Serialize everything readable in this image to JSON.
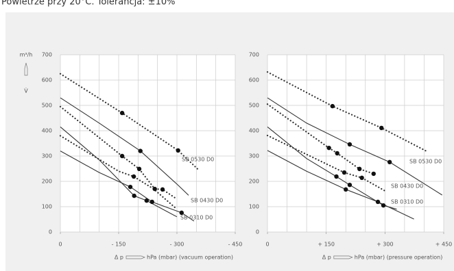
{
  "caption": "Powietrze przy 20°C. Tolerancja: ±10%",
  "chart_data": [
    {
      "type": "line",
      "ylabel": "m³/h",
      "ylabel_symbol": "V̇",
      "xlabel_symbol": "Δ p",
      "xlabel": "hPa (mbar) (vacuum operation)",
      "xlim": [
        0,
        -450
      ],
      "xticks": [
        0,
        {
          "value": -150,
          "label": "- 150"
        },
        {
          "value": -300,
          "label": "- 300"
        },
        {
          "value": -450,
          "label": "- 450"
        }
      ],
      "xgrid": [
        0,
        -50,
        -100,
        -150,
        -200,
        -250,
        -300,
        -350,
        -400,
        -450
      ],
      "ylim": [
        0,
        700
      ],
      "yticks": [
        0,
        100,
        200,
        300,
        400,
        500,
        600,
        700
      ],
      "grid": true,
      "series": [
        {
          "name": "SB 0530 D0",
          "style": "solid",
          "x": [
            0,
            -100,
            -206,
            -303,
            -330
          ],
          "values": [
            530,
            430,
            320,
            185,
            145
          ]
        },
        {
          "name": "SB 0430 D0",
          "style": "solid",
          "x": [
            0,
            -100,
            -190,
            -222,
            -300
          ],
          "values": [
            415,
            285,
            143,
            124,
            60
          ]
        },
        {
          "name": "SB 0310 D0",
          "style": "solid",
          "x": [
            0,
            -100,
            -180,
            -236,
            -312,
            -344
          ],
          "values": [
            320,
            235,
            178,
            119,
            76,
            43
          ]
        },
        {
          "style": "dotted",
          "x": [
            0,
            -159,
            -303,
            -356
          ],
          "values": [
            625,
            470,
            322,
            245
          ]
        },
        {
          "style": "dotted",
          "x": [
            0,
            -159,
            -203,
            -243,
            -263,
            -300
          ],
          "values": [
            495,
            300,
            249,
            170,
            168,
            130
          ]
        },
        {
          "style": "dotted",
          "x": [
            0,
            -150,
            -189,
            -240,
            -300
          ],
          "values": [
            380,
            240,
            219,
            170,
            90
          ]
        },
        {
          "style": "dot",
          "x": [
            -159,
            -206,
            -303,
            -159,
            -203,
            -189,
            -243,
            -263,
            -180,
            -190,
            -222,
            -236,
            -312
          ],
          "values": [
            470,
            320,
            322,
            300,
            249,
            219,
            170,
            168,
            178,
            143,
            124,
            119,
            76
          ]
        }
      ]
    },
    {
      "type": "line",
      "xlabel_symbol": "Δ p",
      "xlabel": "hPa (mbar) (pressure operation)",
      "xlim": [
        0,
        450
      ],
      "xticks": [
        0,
        {
          "value": 150,
          "label": "+ 150"
        },
        {
          "value": 300,
          "label": "+ 300"
        },
        {
          "value": 450,
          "label": "+ 450"
        }
      ],
      "xgrid": [
        0,
        50,
        100,
        150,
        200,
        250,
        300,
        350,
        400,
        450
      ],
      "ylim": [
        0,
        700
      ],
      "yticks": [
        0,
        100,
        200,
        300,
        400,
        500,
        600,
        700
      ],
      "grid": true,
      "series": [
        {
          "name": "SB 0530 D0",
          "style": "solid",
          "x": [
            0,
            100,
            210,
            312,
            446
          ],
          "values": [
            530,
            430,
            346,
            276,
            146
          ]
        },
        {
          "name": "SB 0430 D0",
          "style": "solid",
          "x": [
            0,
            100,
            176,
            210,
            296,
            330
          ],
          "values": [
            415,
            290,
            219,
            186,
            105,
            90
          ]
        },
        {
          "name": "SB 0310 D0",
          "style": "solid",
          "x": [
            0,
            100,
            200,
            282,
            374
          ],
          "values": [
            322,
            240,
            168,
            119,
            51
          ]
        },
        {
          "style": "dotted",
          "x": [
            0,
            166,
            291,
            410
          ],
          "values": [
            632,
            497,
            411,
            316
          ]
        },
        {
          "style": "dotted",
          "x": [
            0,
            157,
            178,
            235,
            271
          ],
          "values": [
            505,
            332,
            311,
            249,
            230
          ]
        },
        {
          "style": "dotted",
          "x": [
            0,
            196,
            241,
            303
          ],
          "values": [
            381,
            235,
            214,
            160
          ]
        },
        {
          "style": "dot",
          "x": [
            166,
            291,
            210,
            312,
            157,
            178,
            235,
            271,
            176,
            210,
            296,
            196,
            241,
            200,
            282
          ],
          "values": [
            497,
            411,
            346,
            276,
            332,
            311,
            249,
            230,
            219,
            186,
            105,
            235,
            214,
            168,
            119
          ]
        }
      ]
    }
  ]
}
